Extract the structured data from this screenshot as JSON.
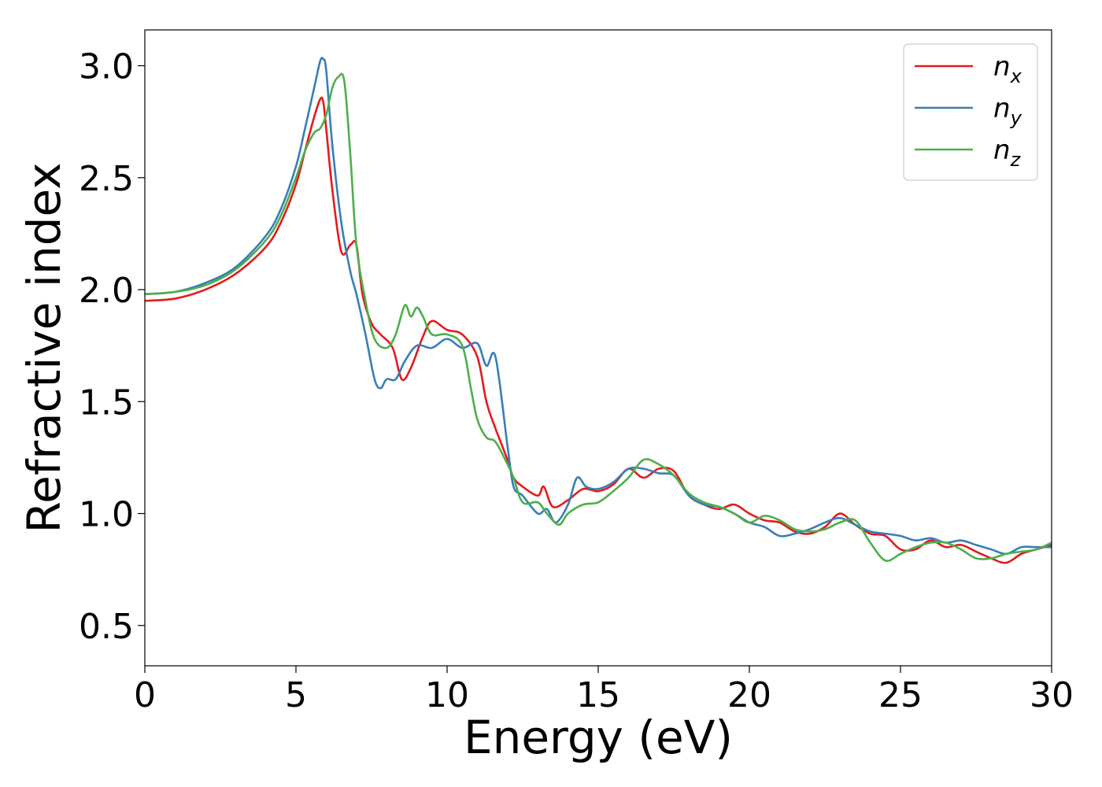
{
  "chart_data": {
    "type": "line",
    "title": "",
    "xlabel": "Energy (eV)",
    "ylabel": "Refractive index",
    "xlim": [
      0,
      30
    ],
    "ylim": [
      0.32,
      3.16
    ],
    "xticks": [
      "0",
      "5",
      "10",
      "15",
      "20",
      "25",
      "30"
    ],
    "yticks": [
      "0.5",
      "1.0",
      "1.5",
      "2.0",
      "2.5",
      "3.0"
    ],
    "grid": false,
    "legend_position": "top-right",
    "series": [
      {
        "name": "n",
        "subscript": "x",
        "color": "#e41a1c",
        "x": [
          0,
          1,
          2,
          3,
          4,
          4.5,
          5,
          5.3,
          5.6,
          5.8,
          5.9,
          6.0,
          6.2,
          6.5,
          6.8,
          7.0,
          7.2,
          7.5,
          7.8,
          8.2,
          8.5,
          8.8,
          9.2,
          9.5,
          10.0,
          10.5,
          11.0,
          11.3,
          11.6,
          12.0,
          12.2,
          12.5,
          13.0,
          13.2,
          13.5,
          14.0,
          14.5,
          15.0,
          15.5,
          16.0,
          16.5,
          17.0,
          17.5,
          18.0,
          18.5,
          19.0,
          19.5,
          20.0,
          20.5,
          21.0,
          21.5,
          22.0,
          22.5,
          23.0,
          23.5,
          24.0,
          24.5,
          25.0,
          25.5,
          26.0,
          26.5,
          27.0,
          27.5,
          28.0,
          28.5,
          29.0,
          29.5,
          30.0
        ],
        "y": [
          1.95,
          1.96,
          2.0,
          2.07,
          2.19,
          2.3,
          2.47,
          2.62,
          2.77,
          2.85,
          2.84,
          2.72,
          2.45,
          2.17,
          2.2,
          2.2,
          1.98,
          1.85,
          1.8,
          1.74,
          1.6,
          1.65,
          1.79,
          1.86,
          1.82,
          1.8,
          1.7,
          1.5,
          1.38,
          1.24,
          1.16,
          1.12,
          1.08,
          1.12,
          1.03,
          1.06,
          1.11,
          1.1,
          1.13,
          1.2,
          1.16,
          1.2,
          1.19,
          1.08,
          1.04,
          1.02,
          1.04,
          1.0,
          0.97,
          0.96,
          0.92,
          0.91,
          0.94,
          1.0,
          0.95,
          0.91,
          0.9,
          0.84,
          0.84,
          0.88,
          0.85,
          0.86,
          0.83,
          0.8,
          0.78,
          0.82,
          0.84,
          0.86
        ]
      },
      {
        "name": "n",
        "subscript": "y",
        "color": "#377eb8",
        "x": [
          0,
          1,
          2,
          3,
          4,
          4.5,
          5,
          5.3,
          5.6,
          5.8,
          5.9,
          6.0,
          6.2,
          6.5,
          6.8,
          7.0,
          7.3,
          7.6,
          7.8,
          8.0,
          8.3,
          8.6,
          9.0,
          9.5,
          10.0,
          10.5,
          11.0,
          11.3,
          11.6,
          12.0,
          12.2,
          12.5,
          13.0,
          13.3,
          13.6,
          14.0,
          14.3,
          14.6,
          15.0,
          15.5,
          16.0,
          16.5,
          17.0,
          17.5,
          18.0,
          18.5,
          19.0,
          19.5,
          20.0,
          20.5,
          21.0,
          21.5,
          22.0,
          22.5,
          23.0,
          23.5,
          24.0,
          24.5,
          25.0,
          25.5,
          26.0,
          26.5,
          27.0,
          27.5,
          28.0,
          28.5,
          29.0,
          29.5,
          30.0
        ],
        "y": [
          1.98,
          1.99,
          2.03,
          2.1,
          2.24,
          2.36,
          2.55,
          2.72,
          2.9,
          3.02,
          3.03,
          2.98,
          2.65,
          2.3,
          2.08,
          1.98,
          1.8,
          1.6,
          1.56,
          1.6,
          1.6,
          1.68,
          1.75,
          1.74,
          1.78,
          1.74,
          1.76,
          1.66,
          1.7,
          1.3,
          1.12,
          1.08,
          1.0,
          1.02,
          0.96,
          1.04,
          1.16,
          1.12,
          1.11,
          1.14,
          1.2,
          1.2,
          1.18,
          1.17,
          1.08,
          1.04,
          1.03,
          1.0,
          0.96,
          0.94,
          0.9,
          0.91,
          0.93,
          0.96,
          0.98,
          0.95,
          0.92,
          0.91,
          0.9,
          0.88,
          0.89,
          0.87,
          0.88,
          0.86,
          0.84,
          0.82,
          0.85,
          0.85,
          0.85
        ]
      },
      {
        "name": "n",
        "subscript": "z",
        "color": "#4daf4a",
        "x": [
          0,
          1,
          2,
          3,
          4,
          4.5,
          5,
          5.3,
          5.6,
          5.8,
          6.0,
          6.2,
          6.4,
          6.6,
          6.8,
          7.0,
          7.3,
          7.6,
          8.0,
          8.3,
          8.6,
          8.8,
          9.0,
          9.2,
          9.5,
          10.0,
          10.5,
          10.8,
          11.0,
          11.3,
          11.6,
          12.0,
          12.2,
          12.5,
          13.0,
          13.3,
          13.7,
          14.0,
          14.5,
          15.0,
          15.5,
          16.0,
          16.5,
          17.0,
          17.5,
          18.0,
          18.5,
          19.0,
          19.5,
          20.0,
          20.5,
          21.0,
          21.5,
          22.0,
          22.5,
          23.0,
          23.5,
          24.0,
          24.5,
          25.0,
          25.5,
          26.0,
          26.5,
          27.0,
          27.5,
          28.0,
          28.5,
          29.0,
          29.5,
          30.0
        ],
        "y": [
          1.98,
          1.99,
          2.02,
          2.09,
          2.22,
          2.33,
          2.5,
          2.62,
          2.7,
          2.72,
          2.78,
          2.9,
          2.95,
          2.93,
          2.6,
          2.2,
          1.95,
          1.78,
          1.74,
          1.8,
          1.93,
          1.88,
          1.92,
          1.88,
          1.8,
          1.8,
          1.75,
          1.55,
          1.42,
          1.34,
          1.32,
          1.22,
          1.16,
          1.05,
          1.05,
          1.0,
          0.95,
          1.0,
          1.04,
          1.05,
          1.1,
          1.16,
          1.24,
          1.22,
          1.17,
          1.09,
          1.05,
          1.03,
          1.0,
          0.96,
          0.99,
          0.97,
          0.93,
          0.92,
          0.93,
          0.96,
          0.97,
          0.87,
          0.79,
          0.82,
          0.85,
          0.87,
          0.87,
          0.84,
          0.8,
          0.8,
          0.82,
          0.83,
          0.84,
          0.87
        ]
      }
    ]
  }
}
